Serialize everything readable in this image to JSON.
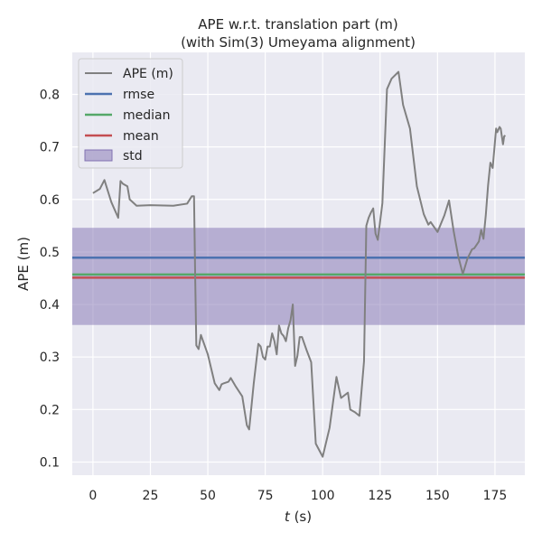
{
  "chart_data": {
    "type": "line",
    "title": "APE w.r.t. translation part (m)",
    "subtitle": "(with Sim(3) Umeyama alignment)",
    "xlabel_var": "t",
    "xlabel_unit": " (s)",
    "ylabel": "APE (m)",
    "xlim": [
      -9,
      188
    ],
    "ylim": [
      0.075,
      0.88
    ],
    "xticks": [
      0,
      25,
      50,
      75,
      100,
      125,
      150,
      175
    ],
    "yticks": [
      0.1,
      0.2,
      0.3,
      0.4,
      0.5,
      0.6,
      0.7,
      0.8
    ],
    "grid": true,
    "legend_position": "top-left",
    "background": "#eaeaf2",
    "series": [
      {
        "name": "APE (m)",
        "color": "#808080",
        "x": [
          0,
          3,
          5,
          8,
          11,
          12,
          13,
          15,
          16,
          19,
          25,
          35,
          41,
          43,
          44,
          44.5,
          45,
          46,
          47,
          50,
          53,
          55,
          56,
          57,
          59,
          60,
          62,
          65,
          67,
          68,
          70,
          72,
          73,
          74,
          75,
          76,
          77,
          78,
          79,
          80,
          81,
          82,
          83,
          84,
          85,
          86,
          87,
          88,
          89,
          90,
          91,
          93,
          95,
          97,
          100,
          103,
          106,
          108,
          111,
          112,
          114,
          116,
          118,
          119,
          120,
          121,
          122,
          123,
          124,
          126,
          128,
          130,
          133,
          135,
          138,
          141,
          144,
          146,
          147,
          150,
          153,
          155,
          157,
          159,
          161,
          163,
          165,
          166,
          168,
          169,
          170,
          171,
          172,
          173,
          174,
          175,
          175.5,
          176,
          177,
          177.5,
          178,
          178.5,
          179,
          179.5
        ],
        "y": [
          0.612,
          0.62,
          0.637,
          0.595,
          0.565,
          0.635,
          0.63,
          0.625,
          0.6,
          0.588,
          0.589,
          0.588,
          0.592,
          0.606,
          0.606,
          0.455,
          0.322,
          0.315,
          0.342,
          0.305,
          0.25,
          0.237,
          0.248,
          0.25,
          0.253,
          0.26,
          0.245,
          0.225,
          0.17,
          0.162,
          0.25,
          0.325,
          0.32,
          0.3,
          0.295,
          0.32,
          0.32,
          0.345,
          0.33,
          0.305,
          0.36,
          0.345,
          0.34,
          0.33,
          0.355,
          0.37,
          0.4,
          0.283,
          0.302,
          0.338,
          0.338,
          0.313,
          0.29,
          0.135,
          0.11,
          0.165,
          0.262,
          0.222,
          0.232,
          0.2,
          0.195,
          0.188,
          0.292,
          0.55,
          0.565,
          0.575,
          0.583,
          0.535,
          0.523,
          0.593,
          0.81,
          0.83,
          0.843,
          0.78,
          0.735,
          0.625,
          0.572,
          0.552,
          0.557,
          0.538,
          0.57,
          0.598,
          0.54,
          0.492,
          0.458,
          0.487,
          0.505,
          0.507,
          0.52,
          0.542,
          0.525,
          0.57,
          0.627,
          0.67,
          0.66,
          0.71,
          0.735,
          0.728,
          0.738,
          0.735,
          0.72,
          0.705,
          0.72,
          0.722
        ]
      }
    ],
    "stats": [
      {
        "name": "rmse",
        "value": 0.489,
        "color": "#4c72b0"
      },
      {
        "name": "median",
        "value": 0.457,
        "color": "#55a868"
      },
      {
        "name": "mean",
        "value": 0.451,
        "color": "#c44e52"
      }
    ],
    "std": {
      "name": "std",
      "lower": 0.361,
      "upper": 0.546,
      "color": "#8172b2"
    }
  }
}
